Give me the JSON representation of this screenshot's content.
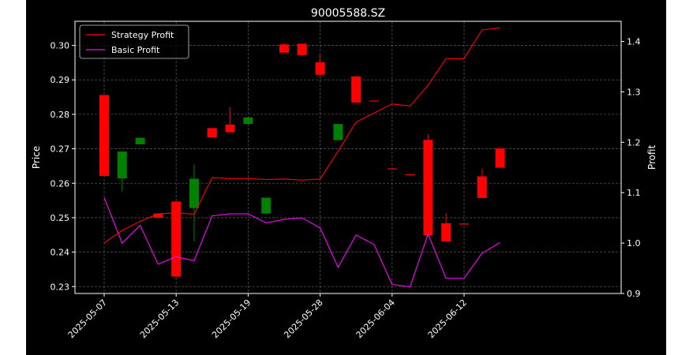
{
  "chart_data": {
    "type": "candlestick",
    "title": "90005588.SZ",
    "ylabel": "Price",
    "y2label": "Profit",
    "ylim": [
      0.228,
      0.307
    ],
    "y2lim": [
      0.9,
      1.44
    ],
    "yticks": [
      "0.23",
      "0.24",
      "0.25",
      "0.26",
      "0.27",
      "0.28",
      "0.29",
      "0.30"
    ],
    "y2ticks": [
      "0.9",
      "1.0",
      "1.1",
      "1.2",
      "1.3",
      "1.4"
    ],
    "xticks": [
      {
        "i": 0,
        "label": "2025-05-07"
      },
      {
        "i": 4,
        "label": "2025-05-13"
      },
      {
        "i": 8,
        "label": "2025-05-19"
      },
      {
        "i": 12,
        "label": "2025-05-28"
      },
      {
        "i": 16,
        "label": "2025-06-04"
      },
      {
        "i": 20,
        "label": "2025-06-12"
      }
    ],
    "grid": true,
    "legend_position": "upper-left",
    "colors": {
      "up": "#008000",
      "down": "#ff0000",
      "strategy": "#ff0000",
      "basic": "#ff00ff",
      "background": "#000000",
      "grid": "#888888"
    },
    "candles": [
      {
        "o": 0.2856,
        "h": 0.2856,
        "l": 0.2621,
        "c": 0.2621
      },
      {
        "o": 0.2614,
        "h": 0.2692,
        "l": 0.2576,
        "c": 0.2692
      },
      {
        "o": 0.2713,
        "h": 0.2732,
        "l": 0.2713,
        "c": 0.2732
      },
      {
        "o": 0.2512,
        "h": 0.2512,
        "l": 0.25,
        "c": 0.25
      },
      {
        "o": 0.2547,
        "h": 0.2547,
        "l": 0.2329,
        "c": 0.2329
      },
      {
        "o": 0.2528,
        "h": 0.2654,
        "l": 0.2431,
        "c": 0.2613
      },
      {
        "o": 0.276,
        "h": 0.276,
        "l": 0.2733,
        "c": 0.2733
      },
      {
        "o": 0.277,
        "h": 0.2821,
        "l": 0.2748,
        "c": 0.2748
      },
      {
        "o": 0.2772,
        "h": 0.2791,
        "l": 0.2772,
        "c": 0.2791
      },
      {
        "o": 0.2512,
        "h": 0.2558,
        "l": 0.2512,
        "c": 0.2558
      },
      {
        "o": 0.3003,
        "h": 0.3007,
        "l": 0.2979,
        "c": 0.2979
      },
      {
        "o": 0.3005,
        "h": 0.3005,
        "l": 0.2972,
        "c": 0.2972
      },
      {
        "o": 0.2951,
        "h": 0.2974,
        "l": 0.2911,
        "c": 0.2915
      },
      {
        "o": 0.2725,
        "h": 0.2772,
        "l": 0.2725,
        "c": 0.2772
      },
      {
        "o": 0.291,
        "h": 0.291,
        "l": 0.2834,
        "c": 0.2834
      },
      {
        "o": 0.284,
        "h": 0.284,
        "l": 0.2838,
        "c": 0.2838
      },
      {
        "o": 0.2643,
        "h": 0.2643,
        "l": 0.2641,
        "c": 0.2641
      },
      {
        "o": 0.2626,
        "h": 0.2626,
        "l": 0.2623,
        "c": 0.2623
      },
      {
        "o": 0.2726,
        "h": 0.2742,
        "l": 0.2449,
        "c": 0.2449
      },
      {
        "o": 0.2484,
        "h": 0.2512,
        "l": 0.2431,
        "c": 0.2431
      },
      {
        "o": 0.2483,
        "h": 0.2483,
        "l": 0.2481,
        "c": 0.2481
      },
      {
        "o": 0.262,
        "h": 0.2642,
        "l": 0.2557,
        "c": 0.2557
      },
      {
        "o": 0.2701,
        "h": 0.2701,
        "l": 0.2645,
        "c": 0.2645
      }
    ],
    "series": [
      {
        "name": "Strategy Profit",
        "values": [
          1.0,
          1.025,
          1.043,
          1.058,
          1.06,
          1.057,
          1.13,
          1.128,
          1.128,
          1.126,
          1.127,
          1.125,
          1.127,
          1.182,
          1.24,
          1.258,
          1.276,
          1.272,
          1.313,
          1.366,
          1.366,
          1.423,
          1.427
        ]
      },
      {
        "name": "Basic Profit",
        "values": [
          1.09,
          1.0,
          1.035,
          0.958,
          0.973,
          0.965,
          1.054,
          1.058,
          1.058,
          1.04,
          1.047,
          1.05,
          1.03,
          0.952,
          1.016,
          0.997,
          0.918,
          0.913,
          1.018,
          0.93,
          0.93,
          0.98,
          1.001
        ]
      }
    ]
  }
}
